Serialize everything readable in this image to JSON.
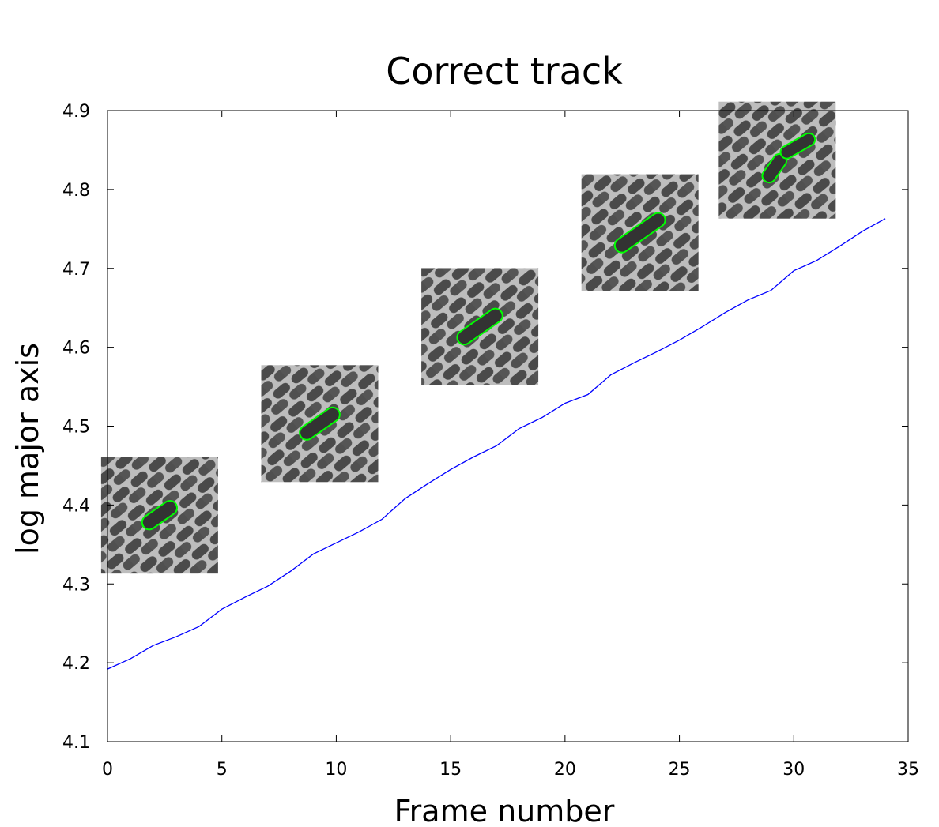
{
  "chart_data": {
    "type": "line",
    "title": "Correct track",
    "xlabel": "Frame number",
    "ylabel": "log major axis",
    "xlim": [
      0,
      35
    ],
    "ylim": [
      4.1,
      4.9
    ],
    "xticks": [
      0,
      5,
      10,
      15,
      20,
      25,
      30,
      35
    ],
    "yticks": [
      4.1,
      4.2,
      4.3,
      4.4,
      4.5,
      4.6,
      4.7,
      4.8,
      4.9
    ],
    "xtick_labels": [
      "0",
      "5",
      "10",
      "15",
      "20",
      "25",
      "30",
      "35"
    ],
    "ytick_labels": [
      "4.1",
      "4.2",
      "4.3",
      "4.4",
      "4.5",
      "4.6",
      "4.7",
      "4.8",
      "4.9"
    ],
    "grid": false,
    "series": [
      {
        "color": "#0000ff",
        "x": [
          0,
          1,
          2,
          3,
          4,
          5,
          6,
          7,
          8,
          9,
          10,
          11,
          12,
          13,
          14,
          15,
          16,
          17,
          18,
          19,
          20,
          21,
          22,
          23,
          24,
          25,
          26,
          27,
          28,
          29,
          30,
          31,
          32,
          33,
          34
        ],
        "y": [
          4.192,
          4.205,
          4.222,
          4.233,
          4.246,
          4.268,
          4.283,
          4.297,
          4.316,
          4.338,
          4.352,
          4.366,
          4.382,
          4.408,
          4.427,
          4.445,
          4.461,
          4.475,
          4.497,
          4.511,
          4.529,
          4.54,
          4.565,
          4.58,
          4.594,
          4.609,
          4.626,
          4.644,
          4.66,
          4.672,
          4.697,
          4.71,
          4.728,
          4.747,
          4.763
        ]
      }
    ],
    "insets": [
      {
        "frame": 2,
        "outline_color": "#00ff00"
      },
      {
        "frame": 9,
        "outline_color": "#00ff00"
      },
      {
        "frame": 16,
        "outline_color": "#00ff00"
      },
      {
        "frame": 23,
        "outline_color": "#00ff00"
      },
      {
        "frame": 29,
        "outline_color": "#00ff00"
      }
    ]
  }
}
